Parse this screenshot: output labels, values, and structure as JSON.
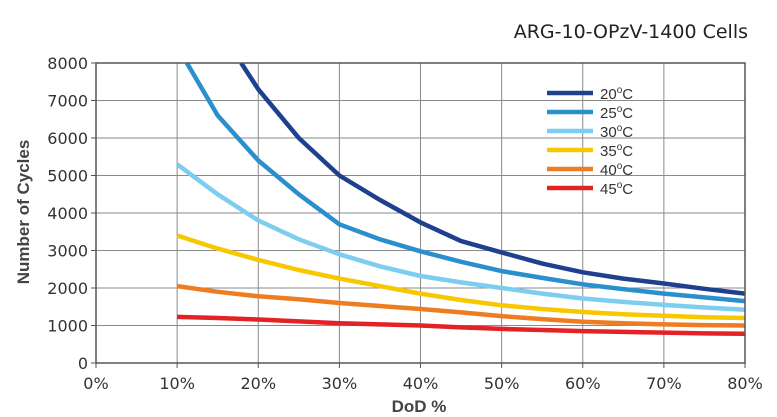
{
  "chart_data": {
    "type": "line",
    "title": "ARG-10-OPzV-1400 Cells",
    "xlabel": "DoD %",
    "ylabel": "Number of Cycles",
    "xlim": [
      0,
      80
    ],
    "ylim": [
      0,
      8000
    ],
    "x_ticks": [
      0,
      10,
      20,
      30,
      40,
      50,
      60,
      70,
      80
    ],
    "x_tick_labels": [
      "0%",
      "10%",
      "20%",
      "30%",
      "40%",
      "50%",
      "60%",
      "70%",
      "80%"
    ],
    "y_ticks": [
      0,
      1000,
      2000,
      3000,
      4000,
      5000,
      6000,
      7000,
      8000
    ],
    "y_tick_labels": [
      "0",
      "1000",
      "2000",
      "3000",
      "4000",
      "5000",
      "6000",
      "7000",
      "8000"
    ],
    "grid": true,
    "legend_position": "top-right",
    "series": [
      {
        "name": "20",
        "color": "#1f3f8f",
        "points": [
          [
            17.9,
            8000
          ],
          [
            20,
            7300
          ],
          [
            25,
            6000
          ],
          [
            30,
            5000
          ],
          [
            35,
            4350
          ],
          [
            40,
            3750
          ],
          [
            45,
            3250
          ],
          [
            50,
            2950
          ],
          [
            55,
            2650
          ],
          [
            60,
            2420
          ],
          [
            65,
            2250
          ],
          [
            70,
            2120
          ],
          [
            75,
            1980
          ],
          [
            80,
            1850
          ]
        ]
      },
      {
        "name": "25",
        "color": "#2a8fcd",
        "points": [
          [
            11.2,
            8000
          ],
          [
            15,
            6600
          ],
          [
            20,
            5400
          ],
          [
            25,
            4500
          ],
          [
            30,
            3700
          ],
          [
            35,
            3300
          ],
          [
            40,
            2980
          ],
          [
            45,
            2700
          ],
          [
            50,
            2450
          ],
          [
            55,
            2270
          ],
          [
            60,
            2100
          ],
          [
            65,
            1970
          ],
          [
            70,
            1850
          ],
          [
            75,
            1750
          ],
          [
            80,
            1650
          ]
        ]
      },
      {
        "name": "30",
        "color": "#7dcdf0",
        "points": [
          [
            10,
            5300
          ],
          [
            15,
            4500
          ],
          [
            20,
            3800
          ],
          [
            25,
            3300
          ],
          [
            30,
            2900
          ],
          [
            35,
            2580
          ],
          [
            40,
            2320
          ],
          [
            45,
            2150
          ],
          [
            50,
            2000
          ],
          [
            55,
            1850
          ],
          [
            60,
            1720
          ],
          [
            65,
            1630
          ],
          [
            70,
            1550
          ],
          [
            75,
            1480
          ],
          [
            80,
            1420
          ]
        ]
      },
      {
        "name": "35",
        "color": "#f7c700",
        "points": [
          [
            10,
            3400
          ],
          [
            15,
            3050
          ],
          [
            20,
            2750
          ],
          [
            25,
            2480
          ],
          [
            30,
            2250
          ],
          [
            35,
            2050
          ],
          [
            40,
            1850
          ],
          [
            45,
            1680
          ],
          [
            50,
            1540
          ],
          [
            55,
            1440
          ],
          [
            60,
            1360
          ],
          [
            65,
            1300
          ],
          [
            70,
            1260
          ],
          [
            75,
            1220
          ],
          [
            80,
            1200
          ]
        ]
      },
      {
        "name": "40",
        "color": "#ee7d22",
        "points": [
          [
            10,
            2050
          ],
          [
            15,
            1900
          ],
          [
            20,
            1780
          ],
          [
            25,
            1700
          ],
          [
            30,
            1600
          ],
          [
            35,
            1520
          ],
          [
            40,
            1440
          ],
          [
            45,
            1350
          ],
          [
            50,
            1250
          ],
          [
            55,
            1170
          ],
          [
            60,
            1100
          ],
          [
            65,
            1060
          ],
          [
            70,
            1030
          ],
          [
            75,
            1010
          ],
          [
            80,
            1000
          ]
        ]
      },
      {
        "name": "45",
        "color": "#e32226",
        "points": [
          [
            10,
            1230
          ],
          [
            15,
            1200
          ],
          [
            20,
            1160
          ],
          [
            25,
            1110
          ],
          [
            30,
            1060
          ],
          [
            35,
            1030
          ],
          [
            40,
            1000
          ],
          [
            45,
            950
          ],
          [
            50,
            910
          ],
          [
            55,
            880
          ],
          [
            60,
            850
          ],
          [
            65,
            830
          ],
          [
            70,
            810
          ],
          [
            75,
            790
          ],
          [
            80,
            780
          ]
        ]
      }
    ],
    "legend_unit_super": "o",
    "legend_unit_suffix": "C"
  }
}
